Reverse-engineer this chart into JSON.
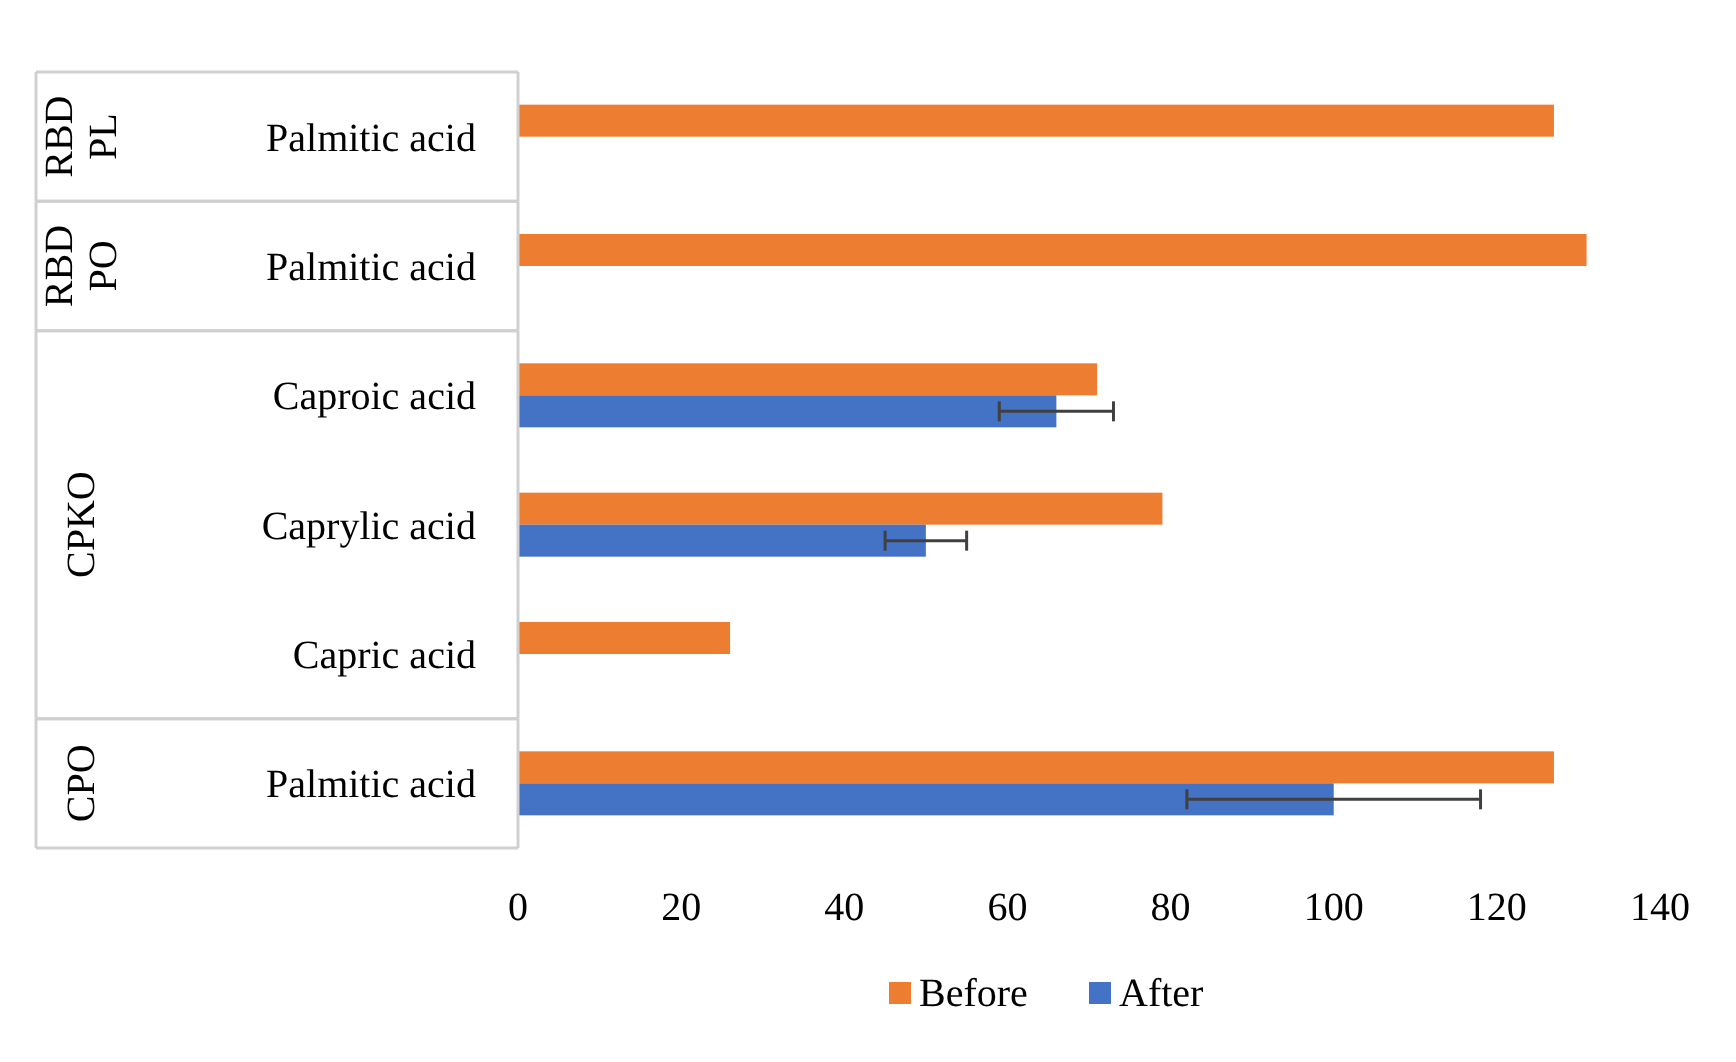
{
  "chart_data": [
    {
      "type": "bar",
      "orientation": "horizontal",
      "title": "RBD PL",
      "categories": [
        "Palmitic acid"
      ],
      "series": [
        {
          "color": "#ed7d31",
          "values": [
            127
          ]
        }
      ],
      "xlim": [
        0,
        140
      ],
      "tick_labels": "y"
    },
    {
      "type": "bar",
      "orientation": "horizontal",
      "title": "RBD PO",
      "categories": [
        "Palmitic acid"
      ],
      "series": [
        {
          "color": "#ed7d31",
          "values": [
            131
          ]
        }
      ],
      "xlim": [
        0,
        140
      ],
      "tick_labels": "y"
    },
    {
      "type": "bar",
      "orientation": "horizontal",
      "title": "CPKO",
      "categories": [
        "Caproic acid",
        "Caprylic acid",
        "Capric acid"
      ],
      "series": [
        {
          "color": "#ed7d31",
          "values": [
            71,
            79,
            26
          ]
        },
        {
          "color": "#4472c4",
          "values": [
            66,
            50,
            null
          ],
          "errors": [
            7,
            5,
            null
          ]
        }
      ],
      "xlim": [
        0,
        140
      ],
      "tick_labels": "y"
    },
    {
      "type": "bar",
      "orientation": "horizontal",
      "title": "CPO",
      "categories": [
        "Palmitic acid"
      ],
      "series": [
        {
          "name": "Before",
          "color": "#ed7d31",
          "values": [
            127
          ]
        },
        {
          "name": "After",
          "color": "#4472c4",
          "values": [
            100
          ],
          "errors": [
            18
          ]
        }
      ],
      "xlim": [
        0,
        140
      ],
      "xticks": [
        0,
        20,
        40,
        60,
        80,
        100,
        120,
        140
      ],
      "legend": "bottom",
      "grid": false
    }
  ]
}
